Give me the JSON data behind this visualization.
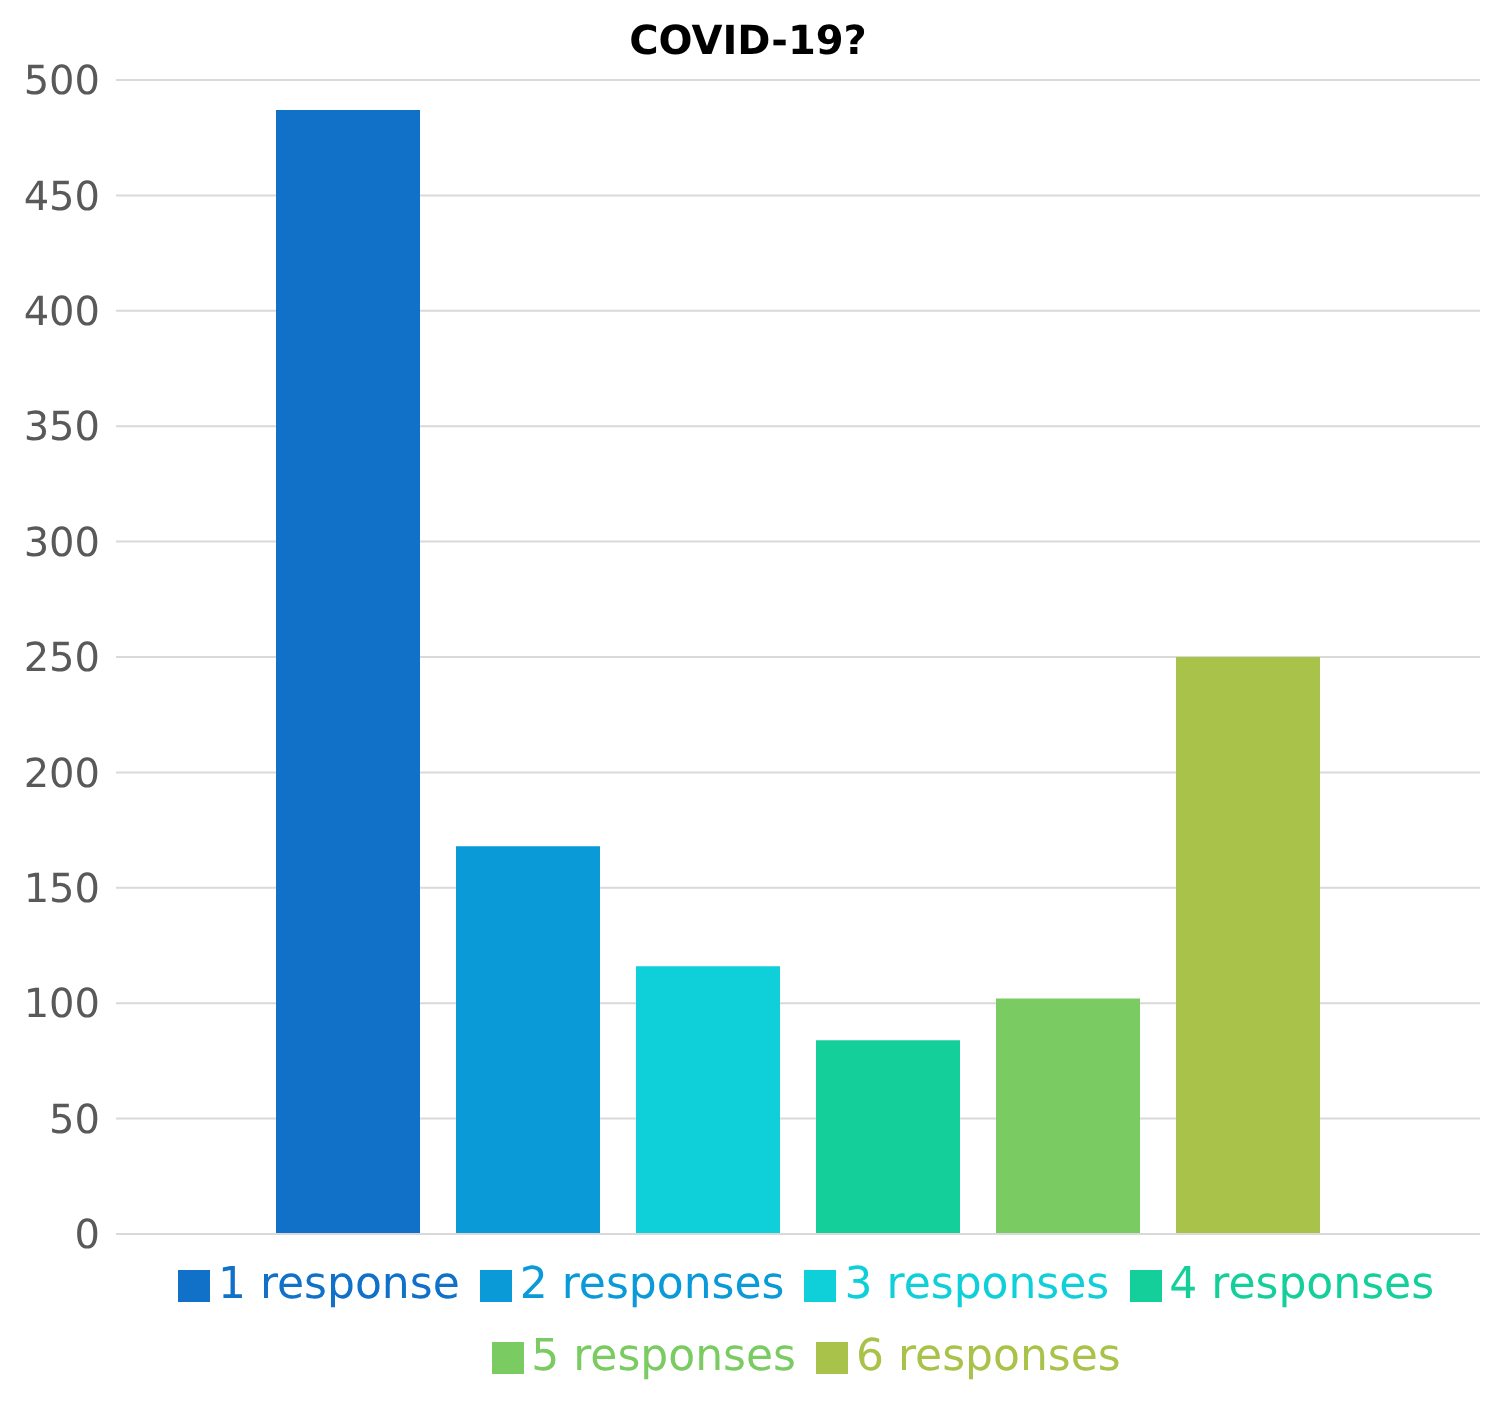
{
  "chart_data": {
    "type": "bar",
    "title": "COVID-19?",
    "categories": [
      null
    ],
    "series": [
      {
        "name": "1 response",
        "color": "#1170c8",
        "values": [
          487
        ]
      },
      {
        "name": "2 responses",
        "color": "#0a9ad8",
        "values": [
          168
        ]
      },
      {
        "name": "3 responses",
        "color": "#0fcfd8",
        "values": [
          116
        ]
      },
      {
        "name": "4 responses",
        "color": "#14cf9a",
        "values": [
          84
        ]
      },
      {
        "name": "5 responses",
        "color": "#7acb62",
        "values": [
          102
        ]
      },
      {
        "name": "6 responses",
        "color": "#a8c24a",
        "values": [
          250
        ]
      }
    ],
    "ylim": [
      0,
      500
    ],
    "yticks": [
      0,
      50,
      100,
      150,
      200,
      250,
      300,
      350,
      400,
      450,
      500
    ],
    "grid": "y",
    "legend": "bottom"
  }
}
